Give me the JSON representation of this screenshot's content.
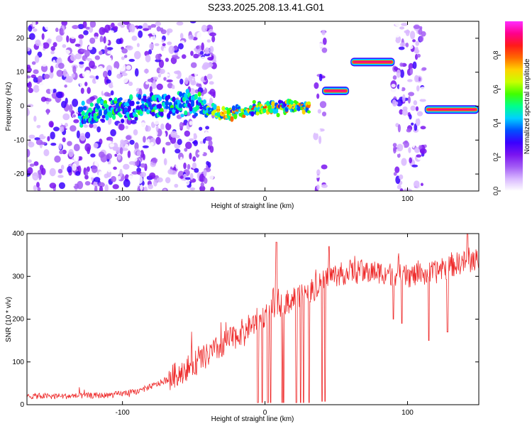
{
  "title": "S233.2025.208.13.41.G01",
  "colors": {
    "series": "#ee2a2a",
    "colormap": [
      "#ffffff",
      "#d9b8ff",
      "#a35cf5",
      "#7a14f0",
      "#3a00ff",
      "#0050ff",
      "#00d0ff",
      "#00ff8c",
      "#40ff00",
      "#c8ff00",
      "#ffd200",
      "#ff6a00",
      "#ff1a1a",
      "#ff008c",
      "#ff2dff"
    ]
  },
  "chart_data": [
    {
      "type": "heatmap",
      "title": "S233.2025.208.13.41.G01",
      "xlabel": "Height of straight line (km)",
      "ylabel": "Frequency (Hz)",
      "xlim": [
        -167,
        150
      ],
      "ylim": [
        -25,
        25
      ],
      "xticks": [
        -100,
        0,
        100
      ],
      "yticks": [
        -20,
        -10,
        0,
        10,
        20
      ],
      "colorbar": {
        "label": "Normalized spectral amplitude",
        "range": [
          0,
          1
        ],
        "ticks": [
          "0.0",
          "0.2",
          "0.4",
          "0.6",
          "0.8"
        ]
      },
      "ridge": [
        {
          "x": -130,
          "y": -3
        },
        {
          "x": -115,
          "y": -1
        },
        {
          "x": -100,
          "y": -1
        },
        {
          "x": -85,
          "y": 0
        },
        {
          "x": -70,
          "y": 0
        },
        {
          "x": -55,
          "y": 1
        },
        {
          "x": -45,
          "y": 0
        },
        {
          "x": -35,
          "y": -1
        },
        {
          "x": -30,
          "y": -2
        },
        {
          "x": -20,
          "y": -2
        },
        {
          "x": -10,
          "y": -1
        },
        {
          "x": 0,
          "y": 0
        },
        {
          "x": 5,
          "y": -1
        },
        {
          "x": 15,
          "y": 0
        },
        {
          "x": 25,
          "y": 0
        },
        {
          "x": 32,
          "y": 0
        }
      ],
      "bands": [
        {
          "x0": 40,
          "x1": 59,
          "y": 4.5
        },
        {
          "x0": 60,
          "x1": 91,
          "y": 13
        },
        {
          "x0": 112,
          "x1": 150,
          "y": -1
        }
      ],
      "noisy_regions": [
        {
          "x0": -167,
          "x1": -35,
          "density": "high"
        },
        {
          "x0": 35,
          "x1": 42,
          "density": "medium"
        },
        {
          "x0": 90,
          "x1": 112,
          "density": "high"
        }
      ]
    },
    {
      "type": "line",
      "xlabel": "Height of straight line (km)",
      "ylabel": "SNR (10 * v/v)",
      "xlim": [
        -167,
        150
      ],
      "ylim": [
        0,
        400
      ],
      "xticks": [
        -100,
        0,
        100
      ],
      "yticks": [
        0,
        100,
        200,
        300,
        400
      ],
      "trend": [
        {
          "x": -167,
          "y": 20
        },
        {
          "x": -140,
          "y": 20
        },
        {
          "x": -110,
          "y": 22
        },
        {
          "x": -90,
          "y": 30
        },
        {
          "x": -70,
          "y": 55
        },
        {
          "x": -55,
          "y": 85
        },
        {
          "x": -40,
          "y": 115
        },
        {
          "x": -25,
          "y": 150
        },
        {
          "x": -10,
          "y": 185
        },
        {
          "x": 5,
          "y": 220
        },
        {
          "x": 20,
          "y": 250
        },
        {
          "x": 35,
          "y": 270
        },
        {
          "x": 45,
          "y": 300
        },
        {
          "x": 60,
          "y": 310
        },
        {
          "x": 80,
          "y": 310
        },
        {
          "x": 100,
          "y": 300
        },
        {
          "x": 120,
          "y": 310
        },
        {
          "x": 135,
          "y": 330
        },
        {
          "x": 150,
          "y": 340
        }
      ],
      "dips": [
        {
          "x": -5,
          "y": 5
        },
        {
          "x": -2,
          "y": 5
        },
        {
          "x": 2,
          "y": 5
        },
        {
          "x": 4,
          "y": 5
        },
        {
          "x": 12,
          "y": 5
        },
        {
          "x": 13,
          "y": 5
        },
        {
          "x": 22,
          "y": 5
        },
        {
          "x": 25,
          "y": 5
        },
        {
          "x": 27,
          "y": 5
        },
        {
          "x": 31,
          "y": 5
        },
        {
          "x": 40,
          "y": 8
        },
        {
          "x": 42,
          "y": 8
        },
        {
          "x": 115,
          "y": 150
        },
        {
          "x": 128,
          "y": 170
        },
        {
          "x": 90,
          "y": 200
        },
        {
          "x": 96,
          "y": 190
        }
      ],
      "peaks": [
        {
          "x": 8,
          "y": 380
        },
        {
          "x": 45,
          "y": 370
        },
        {
          "x": 142,
          "y": 400
        }
      ]
    }
  ]
}
